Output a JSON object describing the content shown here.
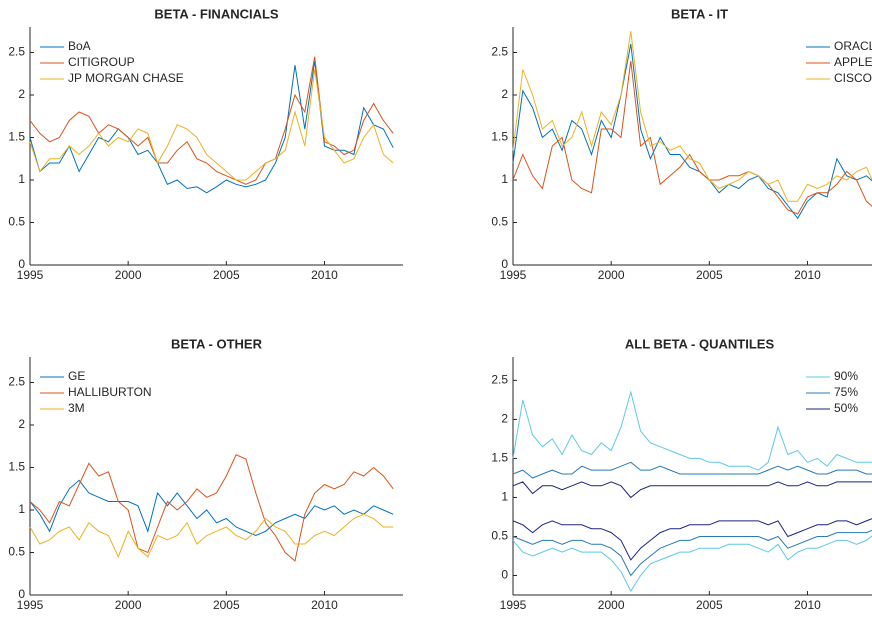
{
  "chart_data": [
    {
      "type": "line",
      "title": "BETA - FINANCIALS",
      "legend": "upper left",
      "x": [
        1995,
        1995.5,
        1996,
        1996.5,
        1997,
        1997.5,
        1998,
        1998.5,
        1999,
        1999.5,
        2000,
        2000.5,
        2001,
        2001.5,
        2002,
        2002.5,
        2003,
        2003.5,
        2004,
        2004.5,
        2005,
        2005.5,
        2006,
        2006.5,
        2007,
        2007.5,
        2008,
        2008.5,
        2009,
        2009.5,
        2010,
        2010.5,
        2011,
        2011.5,
        2012,
        2012.5,
        2013,
        2013.5
      ],
      "xlim": [
        1995,
        2014
      ],
      "xticks": [
        1995,
        2000,
        2005,
        2010
      ],
      "ylim": [
        0,
        2.8
      ],
      "yticks": [
        0,
        0.5,
        1,
        1.5,
        2,
        2.5
      ],
      "series": [
        {
          "name": "BoA",
          "color": "#0072BD",
          "values": [
            1.5,
            1.1,
            1.2,
            1.2,
            1.4,
            1.1,
            1.3,
            1.5,
            1.45,
            1.6,
            1.5,
            1.3,
            1.35,
            1.2,
            0.95,
            1.0,
            0.9,
            0.92,
            0.85,
            0.92,
            1.0,
            0.95,
            0.92,
            0.95,
            1.0,
            1.2,
            1.5,
            2.35,
            1.6,
            2.4,
            1.4,
            1.35,
            1.35,
            1.3,
            1.85,
            1.65,
            1.6,
            1.38
          ]
        },
        {
          "name": "CITIGROUP",
          "color": "#D95319",
          "values": [
            1.7,
            1.55,
            1.45,
            1.5,
            1.7,
            1.8,
            1.75,
            1.55,
            1.65,
            1.6,
            1.5,
            1.4,
            1.5,
            1.2,
            1.2,
            1.35,
            1.45,
            1.25,
            1.2,
            1.1,
            1.05,
            1.0,
            0.95,
            1.0,
            1.2,
            1.25,
            1.6,
            2.0,
            1.8,
            2.45,
            1.45,
            1.4,
            1.3,
            1.35,
            1.7,
            1.9,
            1.7,
            1.55
          ]
        },
        {
          "name": "JP MORGAN CHASE",
          "color": "#EDB120",
          "values": [
            1.45,
            1.1,
            1.25,
            1.25,
            1.4,
            1.3,
            1.4,
            1.55,
            1.4,
            1.5,
            1.45,
            1.6,
            1.55,
            1.2,
            1.4,
            1.65,
            1.6,
            1.5,
            1.3,
            1.2,
            1.1,
            1.0,
            1.0,
            1.1,
            1.2,
            1.25,
            1.35,
            1.8,
            1.4,
            2.3,
            1.5,
            1.35,
            1.2,
            1.25,
            1.5,
            1.65,
            1.3,
            1.2
          ]
        }
      ]
    },
    {
      "type": "line",
      "title": "BETA - IT",
      "legend": "upper right",
      "x": [
        1995,
        1995.5,
        1996,
        1996.5,
        1997,
        1997.5,
        1998,
        1998.5,
        1999,
        1999.5,
        2000,
        2000.5,
        2001,
        2001.5,
        2002,
        2002.5,
        2003,
        2003.5,
        2004,
        2004.5,
        2005,
        2005.5,
        2006,
        2006.5,
        2007,
        2007.5,
        2008,
        2008.5,
        2009,
        2009.5,
        2010,
        2010.5,
        2011,
        2011.5,
        2012,
        2012.5,
        2013,
        2013.5
      ],
      "xlim": [
        1995,
        2014
      ],
      "xticks": [
        1995,
        2000,
        2005,
        2010
      ],
      "ylim": [
        0,
        2.8
      ],
      "yticks": [
        0,
        0.5,
        1,
        1.5,
        2,
        2.5
      ],
      "series": [
        {
          "name": "ORACLE",
          "color": "#0072BD",
          "values": [
            1.2,
            2.05,
            1.85,
            1.5,
            1.6,
            1.35,
            1.7,
            1.6,
            1.3,
            1.7,
            1.5,
            2.0,
            2.6,
            1.6,
            1.25,
            1.5,
            1.3,
            1.3,
            1.15,
            1.1,
            1.0,
            0.85,
            0.95,
            0.9,
            1.0,
            1.05,
            0.9,
            0.85,
            0.7,
            0.55,
            0.75,
            0.85,
            0.8,
            1.25,
            1.05,
            1.0,
            1.05,
            0.95
          ]
        },
        {
          "name": "APPLE",
          "color": "#D95319",
          "values": [
            1.0,
            1.3,
            1.05,
            0.9,
            1.4,
            1.5,
            1.0,
            0.9,
            0.85,
            1.6,
            1.6,
            1.5,
            2.4,
            1.4,
            1.5,
            0.95,
            1.05,
            1.15,
            1.3,
            1.1,
            1.0,
            1.0,
            1.05,
            1.05,
            1.1,
            1.05,
            0.95,
            0.8,
            0.65,
            0.6,
            0.8,
            0.85,
            0.85,
            0.95,
            1.1,
            1.0,
            0.75,
            0.65
          ]
        },
        {
          "name": "CISCO",
          "color": "#EDB120",
          "values": [
            1.35,
            2.3,
            2.0,
            1.6,
            1.7,
            1.4,
            1.5,
            1.8,
            1.4,
            1.8,
            1.65,
            2.0,
            2.75,
            1.8,
            1.4,
            1.45,
            1.35,
            1.4,
            1.25,
            1.2,
            1.0,
            0.9,
            0.95,
            1.0,
            1.1,
            1.05,
            0.95,
            1.0,
            0.75,
            0.75,
            0.95,
            0.9,
            0.95,
            1.05,
            1.0,
            1.1,
            1.15,
            0.9
          ]
        }
      ]
    },
    {
      "type": "line",
      "title": "BETA - OTHER",
      "legend": "upper left",
      "x": [
        1995,
        1995.5,
        1996,
        1996.5,
        1997,
        1997.5,
        1998,
        1998.5,
        1999,
        1999.5,
        2000,
        2000.5,
        2001,
        2001.5,
        2002,
        2002.5,
        2003,
        2003.5,
        2004,
        2004.5,
        2005,
        2005.5,
        2006,
        2006.5,
        2007,
        2007.5,
        2008,
        2008.5,
        2009,
        2009.5,
        2010,
        2010.5,
        2011,
        2011.5,
        2012,
        2012.5,
        2013,
        2013.5
      ],
      "xlim": [
        1995,
        2014
      ],
      "xticks": [
        1995,
        2000,
        2005,
        2010
      ],
      "ylim": [
        0,
        2.8
      ],
      "yticks": [
        0,
        0.5,
        1,
        1.5,
        2,
        2.5
      ],
      "series": [
        {
          "name": "GE",
          "color": "#0072BD",
          "values": [
            1.1,
            0.95,
            0.75,
            1.05,
            1.25,
            1.35,
            1.2,
            1.15,
            1.1,
            1.1,
            1.1,
            1.05,
            0.75,
            1.2,
            1.05,
            1.2,
            1.05,
            0.9,
            1.0,
            0.85,
            0.9,
            0.8,
            0.75,
            0.7,
            0.75,
            0.85,
            0.9,
            0.95,
            0.9,
            1.05,
            1.0,
            1.05,
            0.95,
            1.0,
            0.95,
            1.05,
            1.0,
            0.95
          ]
        },
        {
          "name": "HALLIBURTON",
          "color": "#D95319",
          "values": [
            1.1,
            1.0,
            0.85,
            1.1,
            1.05,
            1.3,
            1.55,
            1.4,
            1.45,
            1.1,
            1.0,
            0.55,
            0.5,
            0.8,
            1.1,
            1.0,
            1.1,
            1.25,
            1.15,
            1.2,
            1.4,
            1.65,
            1.6,
            1.2,
            0.85,
            0.7,
            0.5,
            0.4,
            0.95,
            1.2,
            1.3,
            1.25,
            1.3,
            1.45,
            1.4,
            1.5,
            1.4,
            1.25
          ]
        },
        {
          "name": "3M",
          "color": "#EDB120",
          "values": [
            0.8,
            0.6,
            0.65,
            0.75,
            0.8,
            0.65,
            0.85,
            0.75,
            0.7,
            0.45,
            0.75,
            0.55,
            0.45,
            0.7,
            0.65,
            0.7,
            0.85,
            0.6,
            0.7,
            0.75,
            0.8,
            0.7,
            0.65,
            0.75,
            0.9,
            0.8,
            0.75,
            0.6,
            0.6,
            0.7,
            0.75,
            0.7,
            0.8,
            0.9,
            0.95,
            0.9,
            0.8,
            0.8
          ]
        }
      ]
    },
    {
      "type": "band-line",
      "title": "ALL BETA - QUANTILES",
      "legend": "upper right",
      "x": [
        1995,
        1995.5,
        1996,
        1996.5,
        1997,
        1997.5,
        1998,
        1998.5,
        1999,
        1999.5,
        2000,
        2000.5,
        2001,
        2001.5,
        2002,
        2002.5,
        2003,
        2003.5,
        2004,
        2004.5,
        2005,
        2005.5,
        2006,
        2006.5,
        2007,
        2007.5,
        2008,
        2008.5,
        2009,
        2009.5,
        2010,
        2010.5,
        2011,
        2011.5,
        2012,
        2012.5,
        2013,
        2013.5
      ],
      "xlim": [
        1995,
        2014
      ],
      "xticks": [
        1995,
        2000,
        2005,
        2010
      ],
      "ylim": [
        -0.25,
        2.8
      ],
      "yticks": [
        0,
        0.5,
        1,
        1.5,
        2,
        2.5
      ],
      "series": [
        {
          "name": "90%",
          "color": "#5EC8E8",
          "upper": [
            1.5,
            2.25,
            1.8,
            1.65,
            1.75,
            1.55,
            1.8,
            1.6,
            1.55,
            1.7,
            1.6,
            1.9,
            2.35,
            1.85,
            1.7,
            1.65,
            1.6,
            1.55,
            1.5,
            1.5,
            1.45,
            1.45,
            1.4,
            1.4,
            1.4,
            1.35,
            1.45,
            1.9,
            1.55,
            1.6,
            1.45,
            1.5,
            1.4,
            1.55,
            1.5,
            1.45,
            1.45,
            1.45
          ],
          "lower": [
            0.45,
            0.3,
            0.25,
            0.3,
            0.35,
            0.3,
            0.35,
            0.3,
            0.3,
            0.3,
            0.2,
            0.05,
            -0.2,
            0.0,
            0.15,
            0.2,
            0.25,
            0.3,
            0.3,
            0.35,
            0.35,
            0.35,
            0.4,
            0.4,
            0.4,
            0.35,
            0.3,
            0.4,
            0.2,
            0.3,
            0.35,
            0.35,
            0.4,
            0.45,
            0.45,
            0.4,
            0.45,
            0.55
          ]
        },
        {
          "name": "75%",
          "color": "#2A7AB8",
          "upper": [
            1.3,
            1.35,
            1.25,
            1.3,
            1.35,
            1.3,
            1.3,
            1.4,
            1.35,
            1.35,
            1.35,
            1.4,
            1.45,
            1.35,
            1.35,
            1.4,
            1.35,
            1.3,
            1.3,
            1.3,
            1.3,
            1.3,
            1.3,
            1.3,
            1.3,
            1.3,
            1.35,
            1.4,
            1.35,
            1.4,
            1.35,
            1.3,
            1.3,
            1.35,
            1.35,
            1.35,
            1.3,
            1.3
          ],
          "lower": [
            0.5,
            0.45,
            0.4,
            0.45,
            0.45,
            0.4,
            0.45,
            0.45,
            0.4,
            0.4,
            0.35,
            0.25,
            0.0,
            0.15,
            0.25,
            0.35,
            0.4,
            0.45,
            0.45,
            0.5,
            0.5,
            0.5,
            0.5,
            0.5,
            0.5,
            0.5,
            0.45,
            0.5,
            0.35,
            0.4,
            0.45,
            0.5,
            0.5,
            0.55,
            0.55,
            0.55,
            0.55,
            0.6
          ]
        },
        {
          "name": "50%",
          "color": "#1A237E",
          "upper": [
            1.15,
            1.2,
            1.05,
            1.15,
            1.15,
            1.1,
            1.15,
            1.2,
            1.15,
            1.15,
            1.2,
            1.15,
            1.0,
            1.1,
            1.15,
            1.15,
            1.15,
            1.15,
            1.15,
            1.15,
            1.15,
            1.15,
            1.15,
            1.15,
            1.15,
            1.15,
            1.15,
            1.2,
            1.15,
            1.15,
            1.2,
            1.15,
            1.15,
            1.2,
            1.2,
            1.2,
            1.2,
            1.2
          ],
          "lower": [
            0.7,
            0.65,
            0.55,
            0.65,
            0.7,
            0.65,
            0.65,
            0.65,
            0.6,
            0.6,
            0.55,
            0.45,
            0.2,
            0.35,
            0.45,
            0.55,
            0.6,
            0.6,
            0.65,
            0.65,
            0.65,
            0.7,
            0.7,
            0.7,
            0.7,
            0.7,
            0.65,
            0.7,
            0.5,
            0.55,
            0.6,
            0.65,
            0.65,
            0.7,
            0.7,
            0.65,
            0.7,
            0.75
          ]
        }
      ]
    }
  ]
}
